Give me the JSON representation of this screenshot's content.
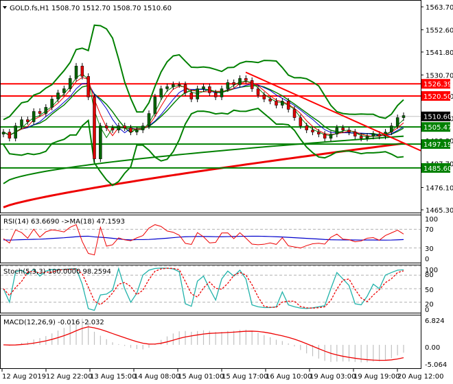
{
  "header": {
    "symbol": "GOLD.fs,H1",
    "ohlc": "1508.70 1512.70 1508.70 1510.60",
    "title": "GOLD.fs,H1  1508.70 1512.70 1508.70 1510.60"
  },
  "colors": {
    "bull": "#006400",
    "bear": "#dd0000",
    "bb": "#008000",
    "ma_long": "#ee0000",
    "resistance": "#ff0000",
    "support": "#008000",
    "current": "#000000",
    "rsi": "#ee0000",
    "rsi_ma": "#0000cc",
    "stoch_main": "#20b2aa",
    "stoch_signal": "#ee0000",
    "macd_hist": "#c0c0c0",
    "macd_signal": "#ee0000"
  },
  "main_panel": {
    "y_ticks": [
      "1563.70",
      "1552.60",
      "1541.80",
      "1530.70",
      "1520.50",
      "1509.70",
      "1498.80",
      "1487.70",
      "1476.10",
      "1465.30"
    ],
    "levels": [
      {
        "label": "1526.39",
        "price": 1526.39,
        "type": "resistance"
      },
      {
        "label": "1520.50",
        "price": 1520.5,
        "type": "resistance"
      },
      {
        "label": "1510.60",
        "price": 1510.6,
        "type": "current"
      },
      {
        "label": "1505.47",
        "price": 1505.47,
        "type": "support"
      },
      {
        "label": "1497.19",
        "price": 1497.19,
        "type": "support"
      },
      {
        "label": "1485.60",
        "price": 1485.6,
        "type": "support"
      }
    ]
  },
  "rsi_panel": {
    "title": "RSI(14) 63.6690  ->MA(18) 47.1593",
    "y_ticks": [
      "100",
      "70",
      "30",
      "0"
    ]
  },
  "stoch_panel": {
    "title": "Stoch(5,3,3) 100.0000 98.2594",
    "y_ticks": [
      "100",
      "80",
      "50",
      "20",
      "0"
    ]
  },
  "macd_panel": {
    "title": "MACD(12,26,9) -0.016 -2.032",
    "y_ticks": [
      "6.824",
      "0.00",
      "-5.064"
    ]
  },
  "x_axis": {
    "labels": [
      "12 Aug 2019",
      "12 Aug 22:00",
      "13 Aug 15:00",
      "14 Aug 08:00",
      "15 Aug 01:00",
      "15 Aug 17:00",
      "16 Aug 10:00",
      "19 Aug 03:00",
      "19 Aug 19:00",
      "20 Aug 12:00"
    ]
  },
  "chart_data": [
    {
      "type": "candlestick",
      "title": "GOLD.fs,H1",
      "ohlc_last": {
        "open": 1508.7,
        "high": 1512.7,
        "low": 1508.7,
        "close": 1510.6
      },
      "ylim": [
        1465.3,
        1563.7
      ],
      "y_ticks": [
        1563.7,
        1552.6,
        1541.8,
        1530.7,
        1520.5,
        1509.7,
        1498.8,
        1487.7,
        1476.1,
        1465.3
      ],
      "x_labels": [
        "12 Aug 2019",
        "12 Aug 22:00",
        "13 Aug 15:00",
        "14 Aug 08:00",
        "15 Aug 01:00",
        "15 Aug 17:00",
        "16 Aug 10:00",
        "19 Aug 03:00",
        "19 Aug 19:00",
        "20 Aug 12:00"
      ],
      "close_series": [
        1503,
        1500,
        1506,
        1509,
        1508,
        1513,
        1512,
        1515,
        1519,
        1522,
        1524,
        1529,
        1535,
        1530,
        1520,
        1490,
        1506,
        1505,
        1504,
        1506,
        1505,
        1503,
        1504,
        1506,
        1512,
        1520,
        1524,
        1525,
        1526,
        1526,
        1522,
        1519,
        1524,
        1525,
        1522,
        1520,
        1524,
        1527,
        1526,
        1529,
        1528,
        1524,
        1521,
        1519,
        1518,
        1516,
        1518,
        1514,
        1510,
        1506,
        1504,
        1503,
        1502,
        1500,
        1502,
        1505,
        1504,
        1503,
        1501,
        1500,
        1501,
        1502,
        1501,
        1503,
        1506,
        1510,
        1511
      ],
      "horizontal_levels": {
        "resistance": [
          1526.39,
          1520.5
        ],
        "support": [
          1505.47,
          1497.19,
          1485.6
        ],
        "current": 1510.6
      },
      "trendline": {
        "from": {
          "x": "15 Aug 17:00",
          "y": 1532
        },
        "to": {
          "x": "20 Aug 12:00",
          "y": 1494
        }
      },
      "indicators": [
        "Bollinger Bands",
        "Moving Averages (short: red, blue, green)",
        "Long MA (red, rising)"
      ]
    },
    {
      "type": "line",
      "title": "RSI(14) 63.6690  ->MA(18) 47.1593",
      "ylim": [
        0,
        100
      ],
      "y_ticks": [
        100,
        70,
        30,
        0
      ],
      "series": [
        {
          "name": "RSI(14)",
          "last": 63.669
        },
        {
          "name": "MA(18)",
          "last": 47.1593
        }
      ]
    },
    {
      "type": "line",
      "title": "Stoch(5,3,3) 100.0000 98.2594",
      "ylim": [
        0,
        100
      ],
      "y_ticks": [
        100,
        80,
        50,
        20,
        0
      ],
      "series": [
        {
          "name": "%K",
          "last": 100.0
        },
        {
          "name": "%D",
          "last": 98.2594
        }
      ]
    },
    {
      "type": "bar",
      "title": "MACD(12,26,9) -0.016 -2.032",
      "ylim": [
        -5.064,
        6.824
      ],
      "y_ticks": [
        6.824,
        0.0,
        -5.064
      ],
      "series": [
        {
          "name": "MACD histogram",
          "last": -0.016
        },
        {
          "name": "Signal",
          "last": -2.032
        }
      ]
    }
  ]
}
